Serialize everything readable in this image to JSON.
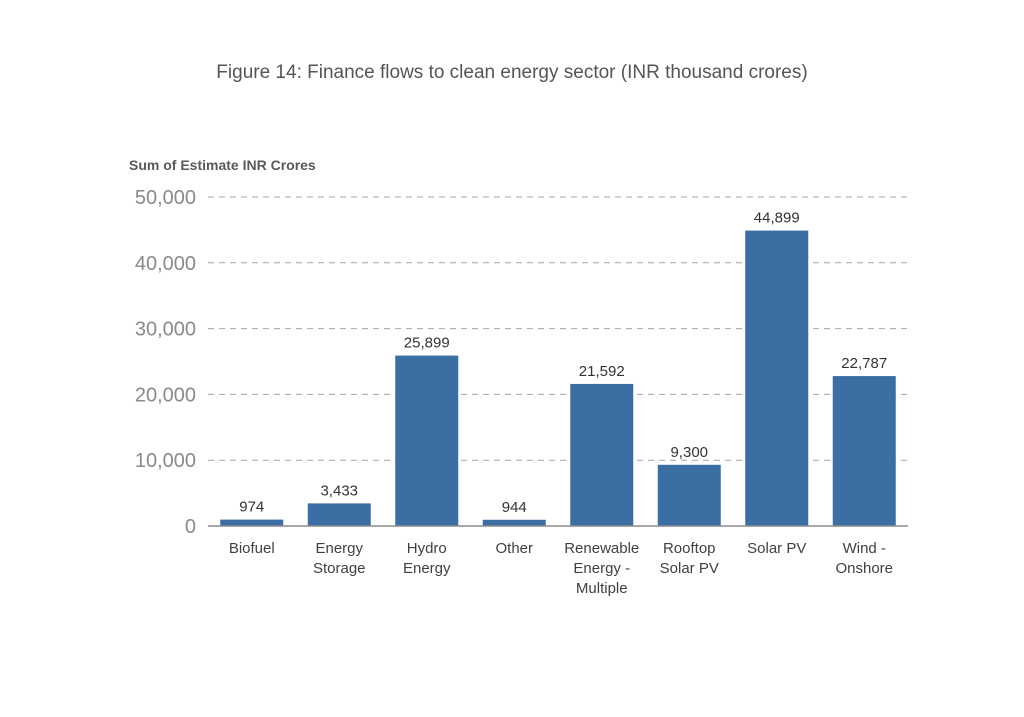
{
  "chart_data": {
    "type": "bar",
    "title": "Figure 14: Finance flows to clean energy sector (INR thousand crores)",
    "ylabel": "Sum of Estimate INR Crores",
    "xlabel": "",
    "ylim": [
      0,
      50000
    ],
    "yticks": [
      0,
      10000,
      20000,
      30000,
      40000,
      50000
    ],
    "ytick_labels": [
      "0",
      "10,000",
      "20,000",
      "30,000",
      "40,000",
      "50,000"
    ],
    "grid": true,
    "bar_color": "#3b6fa3",
    "categories": [
      [
        "Biofuel"
      ],
      [
        "Energy",
        "Storage"
      ],
      [
        "Hydro",
        "Energy"
      ],
      [
        "Other"
      ],
      [
        "Renewable",
        "Energy -",
        "Multiple"
      ],
      [
        "Rooftop",
        "Solar PV"
      ],
      [
        "Solar PV"
      ],
      [
        "Wind -",
        "Onshore"
      ]
    ],
    "values": [
      974,
      3433,
      25899,
      944,
      21592,
      9300,
      44899,
      22787
    ],
    "value_labels": [
      "974",
      "3,433",
      "25,899",
      "944",
      "21,592",
      "9,300",
      "44,899",
      "22,787"
    ]
  }
}
